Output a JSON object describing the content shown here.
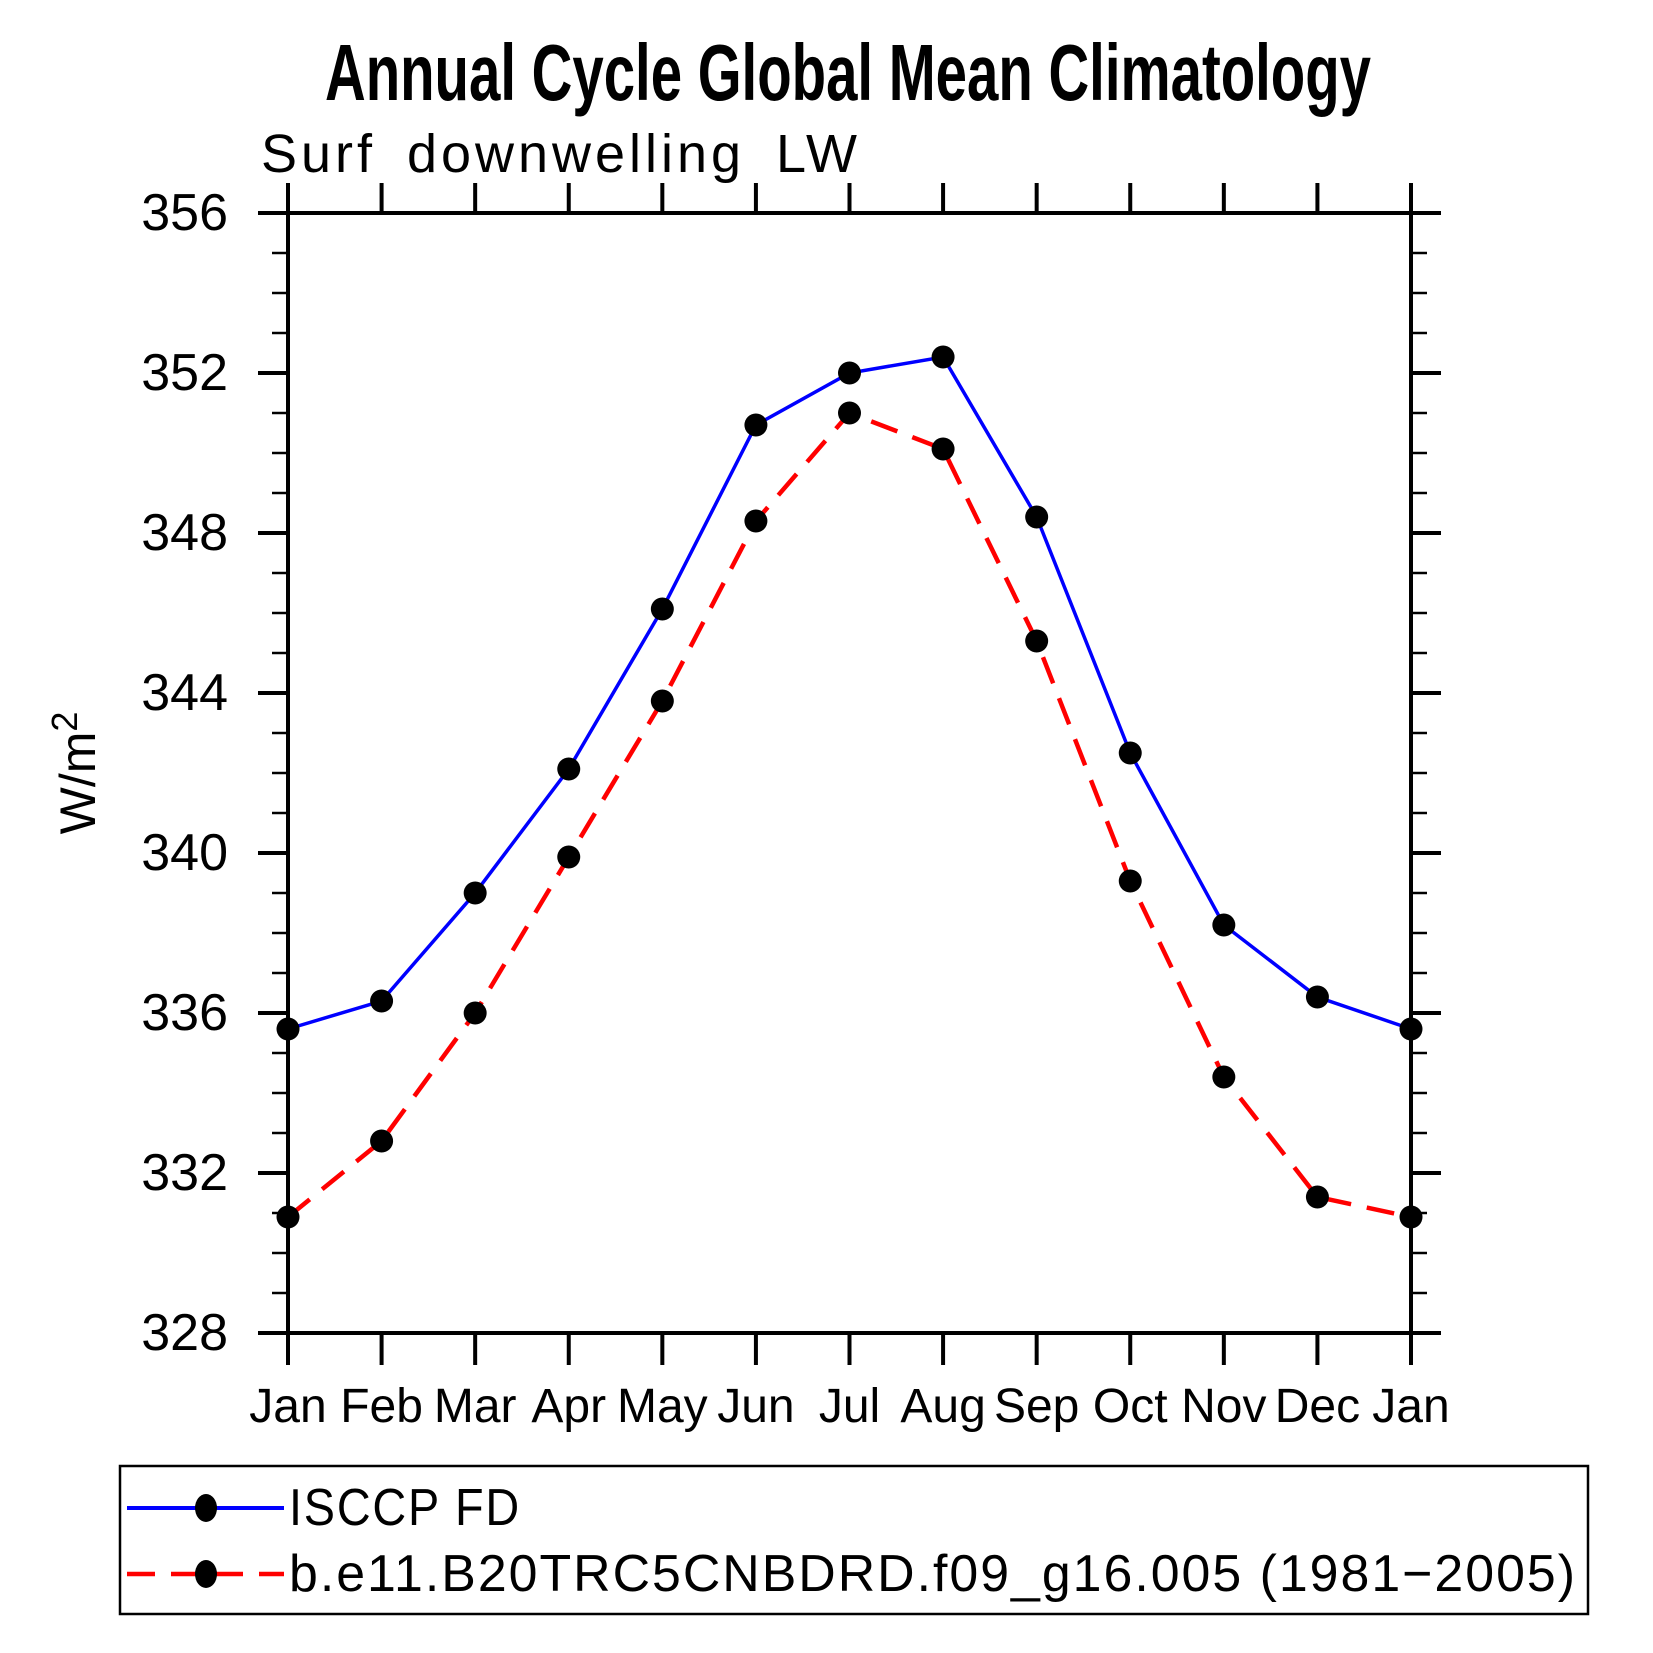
{
  "title": "Annual Cycle Global Mean Climatology",
  "subtitle": "Surf downwelling LW",
  "colors": {
    "axis": "#000000",
    "series1": "#0000ff",
    "series2": "#ff0000",
    "marker": "#000000",
    "background": "#ffffff"
  },
  "chart_data": {
    "type": "line",
    "title": "Annual Cycle Global Mean Climatology",
    "subtitle": "Surf downwelling LW",
    "xlabel": "",
    "ylabel_base": "W/m",
    "ylabel_exponent": "2",
    "x_categories": [
      "Jan",
      "Feb",
      "Mar",
      "Apr",
      "May",
      "Jun",
      "Jul",
      "Aug",
      "Sep",
      "Oct",
      "Nov",
      "Dec",
      "Jan"
    ],
    "ylim": [
      328,
      356
    ],
    "ytick_major": [
      328,
      332,
      336,
      340,
      344,
      348,
      352,
      356
    ],
    "ytick_minor_step": 1,
    "grid": false,
    "legend_position": "bottom",
    "series": [
      {
        "name": "ISCCP FD",
        "color": "#0000ff",
        "style": "solid",
        "marker": "circle",
        "marker_color": "#000000",
        "values": [
          335.6,
          336.3,
          339.0,
          342.1,
          346.1,
          350.7,
          352.0,
          352.4,
          348.4,
          342.5,
          338.2,
          336.4,
          335.6
        ]
      },
      {
        "name": "b.e11.B20TRC5CNBDRD.f09_g16.005 (1981−2005)",
        "color": "#ff0000",
        "style": "dashed",
        "marker": "circle",
        "marker_color": "#000000",
        "values": [
          330.9,
          332.8,
          336.0,
          339.9,
          343.8,
          348.3,
          351.0,
          350.1,
          345.3,
          339.3,
          334.4,
          331.4,
          330.9
        ]
      }
    ]
  }
}
